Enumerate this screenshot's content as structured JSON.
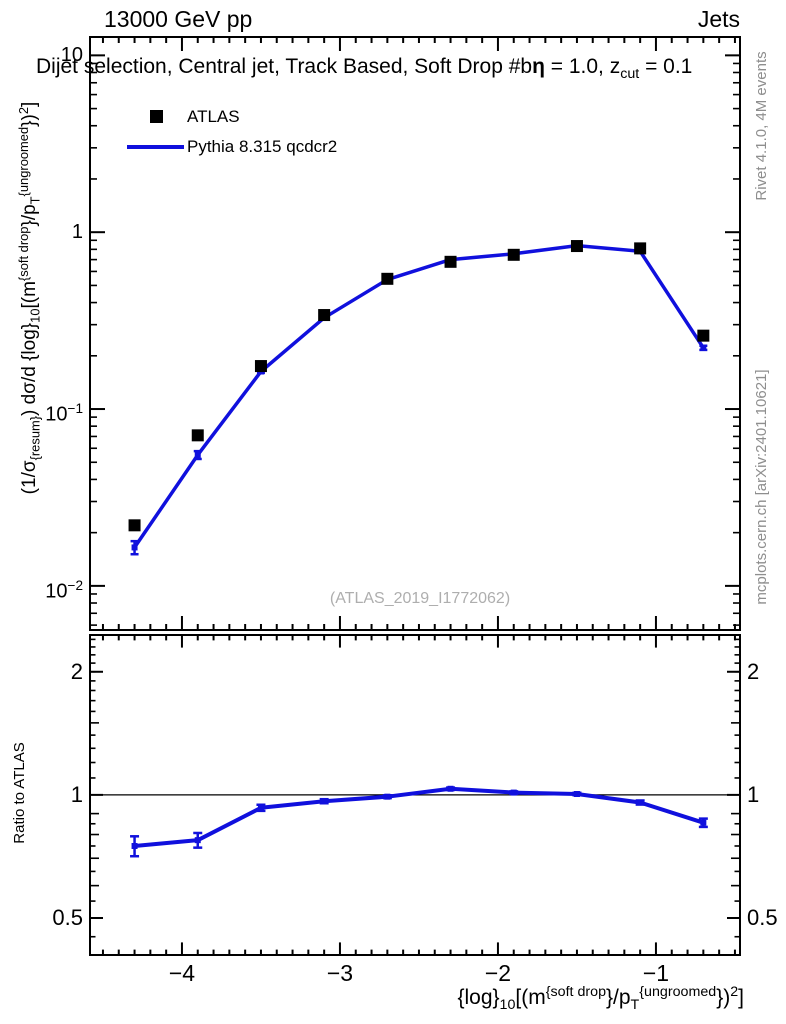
{
  "header": {
    "beam": "13000 GeV pp",
    "observable": "Jets"
  },
  "title_segments": [
    {
      "t": "Dijet selection, Central jet, Track Based, Soft Drop #b"
    },
    {
      "t": "η",
      "bold": true
    },
    {
      "t": " = 1.0, z"
    },
    {
      "t": "cut",
      "sub": true
    },
    {
      "t": " = 0.1"
    }
  ],
  "legend": {
    "items": [
      {
        "label": "ATLAS",
        "swatch": "square",
        "color": "#000000"
      },
      {
        "label": "Pythia 8.315 qcdcr2",
        "swatch": "line",
        "color": "#1010dd"
      }
    ]
  },
  "watermark": "(ATLAS_2019_I1772062)",
  "side_notes": {
    "generator": "Rivet 4.1.0,  4M events",
    "site": "mcplots.cern.ch [arXiv:2401.10621]"
  },
  "ylabel_segments": [
    {
      "t": "(1/σ"
    },
    {
      "t": "{resum}",
      "sub": true
    },
    {
      "t": ") dσ/d {log}"
    },
    {
      "t": "10",
      "sub": true
    },
    {
      "t": "[(m"
    },
    {
      "t": "{soft drop",
      "sup": true
    },
    {
      "t": "}/p"
    },
    {
      "t": "T",
      "sub": true
    },
    {
      "t": "{ungroomed",
      "sup": true
    },
    {
      "t": "})"
    },
    {
      "t": "2",
      "sup": true
    },
    {
      "t": "]"
    }
  ],
  "xlabel_segments": [
    {
      "t": "{log}"
    },
    {
      "t": "10",
      "sub": true
    },
    {
      "t": "[(m"
    },
    {
      "t": "{soft drop",
      "sup": true
    },
    {
      "t": "}/p"
    },
    {
      "t": "T",
      "sub": true
    },
    {
      "t": "{ungroomed",
      "sup": true
    },
    {
      "t": "})"
    },
    {
      "t": "2",
      "sup": true
    },
    {
      "t": "]"
    }
  ],
  "ratio_ylabel": "Ratio to ATLAS",
  "colors": {
    "mc_line": "#1010dd",
    "data_marker": "#000000",
    "frame": "#000000",
    "side_text": "#8e8e8e",
    "watermark_text": "#aeaeae"
  },
  "chart_data": [
    {
      "type": "line",
      "panel": "main",
      "xlabel": "{log}_10[(m^{soft drop}/p_T^{ungroomed})^2]",
      "ylabel": "(1/σ_{resum}) dσ/d {log}_10[(m^{soft drop}/p_T^{ungroomed})^2]",
      "x_range": [
        -4.582,
        -0.468
      ],
      "y_range": [
        0.00563,
        12.7
      ],
      "y_scale": "log",
      "grid": false,
      "legend_position": "top-left",
      "x": [
        -4.3,
        -3.9,
        -3.5,
        -3.1,
        -2.7,
        -2.3,
        -1.9,
        -1.5,
        -1.1,
        -0.7
      ],
      "series": [
        {
          "name": "ATLAS",
          "style": "scatter-square",
          "values": [
            0.022,
            0.071,
            0.175,
            0.34,
            0.545,
            0.68,
            0.745,
            0.835,
            0.81,
            0.26
          ]
        },
        {
          "name": "Pythia 8.315 qcdcr2",
          "style": "line-marker",
          "values": [
            0.0165,
            0.055,
            0.163,
            0.328,
            0.54,
            0.7,
            0.755,
            0.84,
            0.78,
            0.222
          ],
          "yerr": [
            0.0014,
            0.0028,
            0.003,
            0.003,
            0.004,
            0.004,
            0.004,
            0.005,
            0.005,
            0.006
          ]
        }
      ],
      "x_major_ticks": [
        -4,
        -3,
        -2,
        -1
      ],
      "x_minor_step": 0.1,
      "y_major_ticks": [
        {
          "v": 10,
          "label": "10"
        },
        {
          "v": 1,
          "label": "1"
        },
        {
          "v": 0.1,
          "label": "10^{−1}"
        },
        {
          "v": 0.01,
          "label": "10^{−2}"
        }
      ]
    },
    {
      "type": "line",
      "panel": "ratio",
      "ylabel": "Ratio to ATLAS",
      "y_range": [
        0.406,
        2.46
      ],
      "y_scale": "log",
      "ref_line": 1,
      "x": [
        -4.3,
        -3.9,
        -3.5,
        -3.1,
        -2.7,
        -2.3,
        -1.9,
        -1.5,
        -1.1,
        -0.7
      ],
      "series": [
        {
          "name": "Pythia/ATLAS",
          "style": "line-marker",
          "values": [
            0.75,
            0.775,
            0.93,
            0.965,
            0.99,
            1.035,
            1.013,
            1.005,
            0.958,
            0.855
          ],
          "yerr": [
            0.042,
            0.032,
            0.016,
            0.011,
            0.008,
            0.007,
            0.007,
            0.007,
            0.011,
            0.02
          ]
        }
      ],
      "y_major_ticks": [
        {
          "v": 2,
          "label": "2"
        },
        {
          "v": 1,
          "label": "1"
        },
        {
          "v": 0.5,
          "label": "0.5"
        }
      ]
    }
  ]
}
